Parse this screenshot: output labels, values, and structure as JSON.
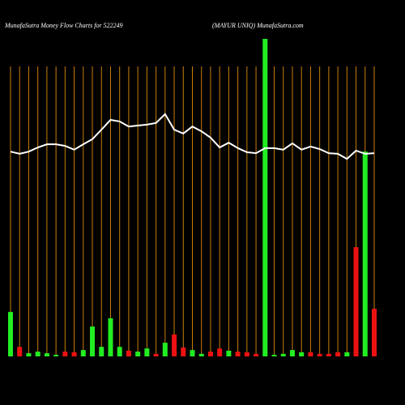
{
  "chart_data": {
    "type": "bar",
    "title": "MunafaSutra  Money Flow  Charts for 522249",
    "subtitle": "(MAYUR UNIQ) MunafaSutra.com",
    "values": [
      14,
      3,
      1,
      1.5,
      1,
      0.5,
      1.5,
      1.3,
      2,
      9.4,
      3,
      12,
      3,
      1.8,
      1.5,
      2.5,
      0.8,
      4.3,
      6.9,
      2.8,
      2,
      0.8,
      1.5,
      2.5,
      1.8,
      1.5,
      1.3,
      0.8,
      100,
      0.5,
      0.8,
      2,
      1.3,
      1.3,
      0.8,
      0.8,
      1.3,
      1.3,
      34.4,
      64.5,
      15
    ],
    "colors": [
      "#22ee22",
      "#ee1111",
      "#22ee22",
      "#22ee22",
      "#22ee22",
      "#22ee22",
      "#ee1111",
      "#ee1111",
      "#22ee22",
      "#22ee22",
      "#22ee22",
      "#22ee22",
      "#22ee22",
      "#ee1111",
      "#22ee22",
      "#22ee22",
      "#ee1111",
      "#22ee22",
      "#ee1111",
      "#ee1111",
      "#22ee22",
      "#22ee22",
      "#ee1111",
      "#ee1111",
      "#22ee22",
      "#ee1111",
      "#ee1111",
      "#ee1111",
      "#22ee22",
      "#22ee22",
      "#22ee22",
      "#22ee22",
      "#22ee22",
      "#ee1111",
      "#ee1111",
      "#ee1111",
      "#ee1111",
      "#22ee22",
      "#ee1111",
      "#22ee22",
      "#ee1111"
    ],
    "line_values": [
      64.5,
      63.8,
      64.5,
      65.8,
      66.8,
      66.8,
      66.3,
      65.1,
      66.8,
      68.4,
      71.4,
      74.5,
      74.0,
      72.4,
      72.7,
      73.0,
      73.5,
      76.3,
      71.4,
      70.2,
      72.4,
      70.9,
      68.9,
      65.8,
      67.3,
      65.6,
      64.3,
      64.0,
      65.6,
      65.6,
      65.1,
      67.1,
      65.1,
      66.1,
      65.3,
      64.0,
      63.8,
      62.2,
      64.8,
      63.8,
      64.0
    ],
    "line_color": "#ffffff",
    "grid_color": "#c87f0a",
    "ylim": [
      0,
      100
    ]
  }
}
